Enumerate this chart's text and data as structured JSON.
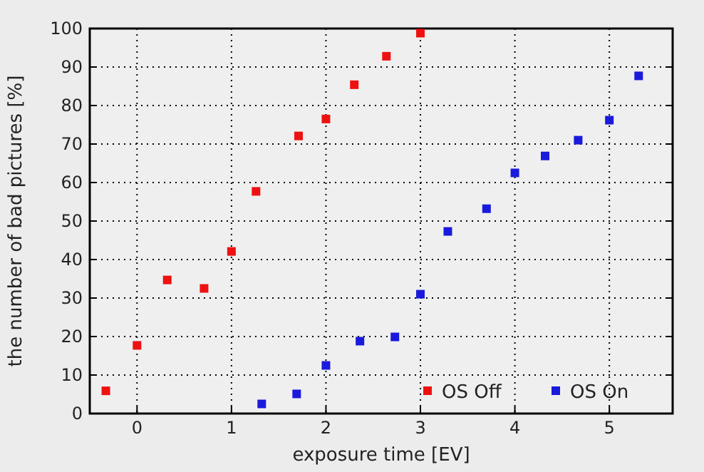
{
  "chart_data": {
    "type": "scatter",
    "xlabel": "exposure time [EV]",
    "ylabel": "the number of bad pictures [%]",
    "xlim": [
      -0.5,
      5.67
    ],
    "xticks": [
      0,
      1,
      2,
      3,
      4,
      5
    ],
    "ylim": [
      0,
      100
    ],
    "yticks": [
      0,
      10,
      20,
      30,
      40,
      50,
      60,
      70,
      80,
      90,
      100
    ],
    "grid": true,
    "legend": "bottom right",
    "marker": "square",
    "series": [
      {
        "name": "OS Off",
        "color": "#ee1111",
        "x": [
          -0.33,
          0,
          0.32,
          0.71,
          1,
          1.26,
          1.71,
          2,
          2.3,
          2.64,
          3
        ],
        "values": [
          5.9,
          17.7,
          34.7,
          32.5,
          42.1,
          57.7,
          72.1,
          76.5,
          85.4,
          92.8,
          98.8
        ]
      },
      {
        "name": "OS On",
        "color": "#1a1adc",
        "x": [
          1.32,
          1.69,
          2,
          2.36,
          2.73,
          3,
          3.29,
          3.7,
          4,
          4.32,
          4.67,
          5,
          5.31
        ],
        "values": [
          2.5,
          5.1,
          12.5,
          18.8,
          19.9,
          31,
          47.3,
          53.2,
          62.5,
          66.9,
          71,
          76.2,
          87.7
        ]
      }
    ]
  }
}
